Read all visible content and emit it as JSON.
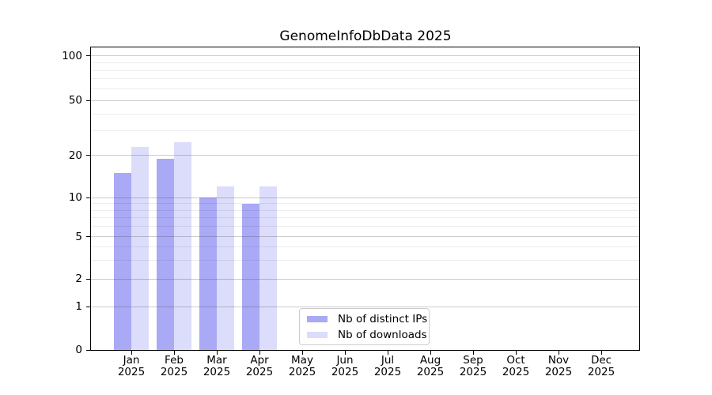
{
  "chart_data": {
    "type": "bar",
    "title": "GenomeInfoDbData 2025",
    "categories": [
      "Jan 2025",
      "Feb 2025",
      "Mar 2025",
      "Apr 2025",
      "May 2025",
      "Jun 2025",
      "Jul 2025",
      "Aug 2025",
      "Sep 2025",
      "Oct 2025",
      "Nov 2025",
      "Dec 2025"
    ],
    "series": [
      {
        "name": "Nb of distinct IPs",
        "color": "#a9a9f5",
        "values": [
          15,
          19,
          10,
          9,
          null,
          null,
          null,
          null,
          null,
          null,
          null,
          null
        ]
      },
      {
        "name": "Nb of downloads",
        "color": "#dcdcfb",
        "values": [
          23,
          25,
          12,
          12,
          null,
          null,
          null,
          null,
          null,
          null,
          null,
          null
        ]
      }
    ],
    "yticks": [
      100,
      50,
      20,
      10,
      5,
      2,
      1,
      0
    ],
    "minor_gridline_values": [
      90,
      80,
      70,
      60,
      40,
      30,
      9,
      8,
      7,
      6,
      4,
      3
    ],
    "yscale": "log-like with 0 baseline",
    "ylim": [
      0,
      100
    ],
    "xlabel": "",
    "ylabel": "",
    "grid": "horizontal major and minor lines drawn over bars",
    "legend_position": "inside plot, lower center"
  },
  "legend": {
    "items": [
      {
        "label": "Nb of distinct IPs",
        "series_index": 0
      },
      {
        "label": "Nb of downloads",
        "series_index": 1
      }
    ]
  }
}
